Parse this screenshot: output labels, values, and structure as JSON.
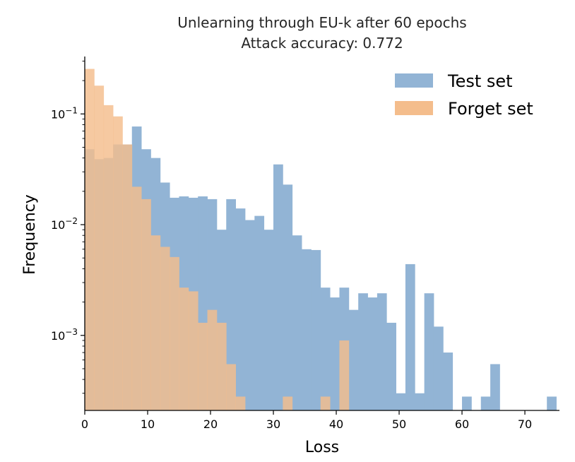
{
  "chart_data": {
    "type": "histogram",
    "title": "Unlearning through EU-k after 60 epochs",
    "subtitle": "Attack accuracy: 0.772",
    "xlabel": "Loss",
    "ylabel": "Frequency",
    "xlim": [
      0,
      75.5
    ],
    "ylim": [
      0.00021,
      0.33
    ],
    "yscale": "log",
    "xticks": [
      0,
      10,
      20,
      30,
      40,
      50,
      60,
      70
    ],
    "yticks": [
      0.001,
      0.01,
      0.1
    ],
    "ytick_labels": [
      "10^-3",
      "10^-2",
      "10^-1"
    ],
    "bin_width": 1.5,
    "legend_position": "top-right",
    "series": [
      {
        "name": "Test set",
        "color": "#92b4d5",
        "bins": [
          [
            0,
            0.048
          ],
          [
            1.5,
            0.039
          ],
          [
            3,
            0.04
          ],
          [
            4.5,
            0.053
          ],
          [
            6,
            0.053
          ],
          [
            7.5,
            0.077
          ],
          [
            9,
            0.048
          ],
          [
            10.5,
            0.04
          ],
          [
            12,
            0.024
          ],
          [
            13.5,
            0.0175
          ],
          [
            15,
            0.018
          ],
          [
            16.5,
            0.0175
          ],
          [
            18,
            0.018
          ],
          [
            19.5,
            0.017
          ],
          [
            21,
            0.009
          ],
          [
            22.5,
            0.017
          ],
          [
            24,
            0.014
          ],
          [
            25.5,
            0.011
          ],
          [
            27,
            0.012
          ],
          [
            28.5,
            0.009
          ],
          [
            30,
            0.035
          ],
          [
            31.5,
            0.023
          ],
          [
            33,
            0.008
          ],
          [
            34.5,
            0.006
          ],
          [
            36,
            0.0059
          ],
          [
            37.5,
            0.0027
          ],
          [
            39,
            0.0022
          ],
          [
            40.5,
            0.0027
          ],
          [
            42,
            0.0017
          ],
          [
            43.5,
            0.0024
          ],
          [
            45,
            0.0022
          ],
          [
            46.5,
            0.0024
          ],
          [
            48,
            0.0013
          ],
          [
            49.5,
            0.0003
          ],
          [
            51,
            0.0044
          ],
          [
            52.5,
            0.0003
          ],
          [
            54,
            0.0024
          ],
          [
            55.5,
            0.0012
          ],
          [
            57,
            0.0007
          ],
          [
            58.5,
            0
          ],
          [
            60,
            0.00028
          ],
          [
            61.5,
            0
          ],
          [
            63,
            0.00028
          ],
          [
            64.5,
            0.00055
          ],
          [
            66,
            0
          ],
          [
            67.5,
            0
          ],
          [
            69,
            0
          ],
          [
            70.5,
            0
          ],
          [
            72,
            0
          ],
          [
            73.5,
            0.00028
          ]
        ]
      },
      {
        "name": "Forget set",
        "color": "#f4bd8c",
        "bins": [
          [
            0,
            0.255
          ],
          [
            1.5,
            0.18
          ],
          [
            3,
            0.12
          ],
          [
            4.5,
            0.095
          ],
          [
            6,
            0.053
          ],
          [
            7.5,
            0.022
          ],
          [
            9,
            0.017
          ],
          [
            10.5,
            0.008
          ],
          [
            12,
            0.0063
          ],
          [
            13.5,
            0.0051
          ],
          [
            15,
            0.0027
          ],
          [
            16.5,
            0.0025
          ],
          [
            18,
            0.0013
          ],
          [
            19.5,
            0.0017
          ],
          [
            21,
            0.0013
          ],
          [
            22.5,
            0.00055
          ],
          [
            24,
            0.00028
          ],
          [
            25.5,
            0
          ],
          [
            27,
            0
          ],
          [
            28.5,
            0
          ],
          [
            30,
            0
          ],
          [
            31.5,
            0.00028
          ],
          [
            33,
            0
          ],
          [
            34.5,
            0
          ],
          [
            36,
            0
          ],
          [
            37.5,
            0.00028
          ],
          [
            39,
            0
          ],
          [
            40.5,
            0.0009
          ],
          [
            42,
            0
          ]
        ]
      }
    ]
  }
}
